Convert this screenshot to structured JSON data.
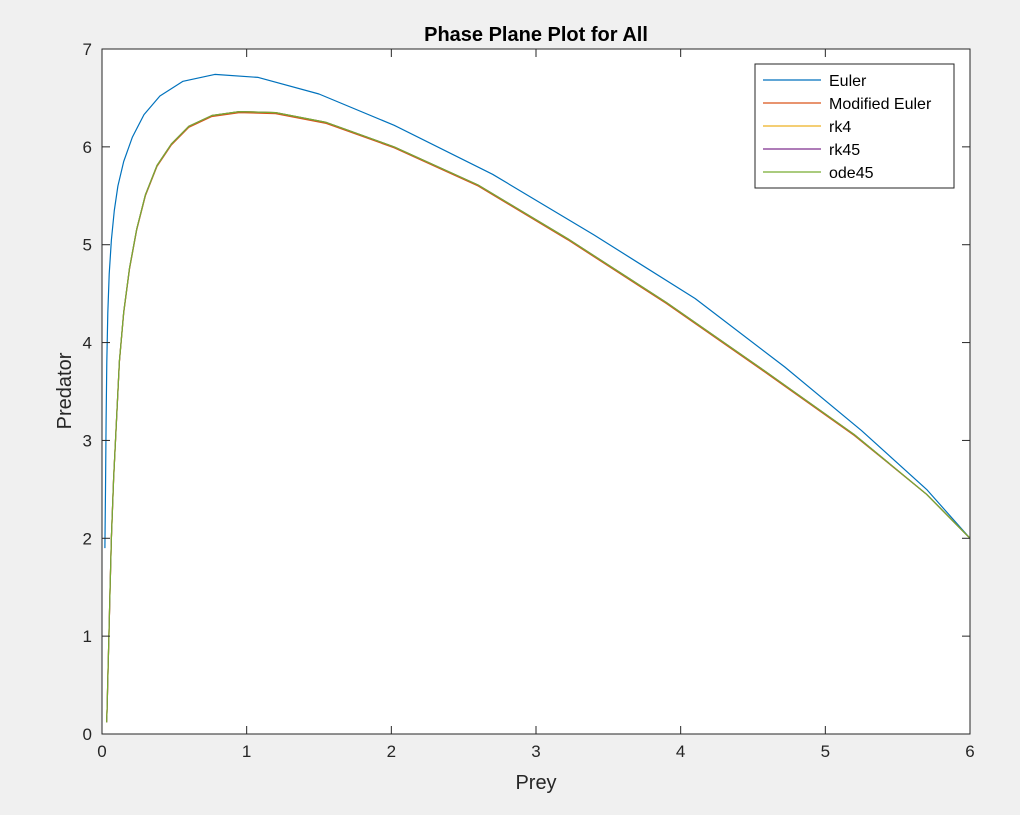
{
  "chart_data": {
    "type": "line",
    "title": "Phase Plane Plot for All",
    "xlabel": "Prey",
    "ylabel": "Predator",
    "xlim": [
      0,
      6
    ],
    "ylim": [
      0,
      7
    ],
    "xticks": [
      "0",
      "1",
      "2",
      "3",
      "4",
      "5",
      "6"
    ],
    "yticks": [
      "0",
      "1",
      "2",
      "3",
      "4",
      "5",
      "6",
      "7"
    ],
    "grid": false,
    "legend_position": "top-right",
    "series": [
      {
        "name": "Euler",
        "color": "#0072BD",
        "x": [
          6.0,
          5.7,
          5.25,
          4.72,
          4.1,
          3.4,
          2.7,
          2.02,
          1.5,
          1.08,
          0.78,
          0.56,
          0.4,
          0.29,
          0.21,
          0.15,
          0.11,
          0.085,
          0.065,
          0.05,
          0.04,
          0.033,
          0.028,
          0.024,
          0.02
        ],
        "y": [
          2.0,
          2.5,
          3.1,
          3.75,
          4.45,
          5.1,
          5.72,
          6.22,
          6.54,
          6.71,
          6.74,
          6.67,
          6.52,
          6.33,
          6.1,
          5.85,
          5.6,
          5.35,
          5.05,
          4.7,
          4.3,
          3.8,
          3.2,
          2.5,
          1.9
        ]
      },
      {
        "name": "Modified Euler",
        "color": "#D95319",
        "x": [
          6.0,
          5.7,
          5.2,
          4.58,
          3.9,
          3.22,
          2.6,
          2.02,
          1.55,
          1.2,
          0.95,
          0.76,
          0.6,
          0.48,
          0.38,
          0.3,
          0.24,
          0.19,
          0.15,
          0.12,
          0.1,
          0.08,
          0.065,
          0.055,
          0.047,
          0.04,
          0.035,
          0.032
        ],
        "y": [
          2.0,
          2.45,
          3.05,
          3.7,
          4.4,
          5.05,
          5.6,
          5.99,
          6.24,
          6.34,
          6.35,
          6.31,
          6.2,
          6.02,
          5.8,
          5.5,
          5.15,
          4.75,
          4.3,
          3.8,
          3.2,
          2.6,
          2.0,
          1.45,
          0.95,
          0.55,
          0.25,
          0.12
        ]
      },
      {
        "name": "rk4",
        "color": "#EDB120",
        "x": [
          6.0,
          5.7,
          5.2,
          4.58,
          3.9,
          3.22,
          2.6,
          2.02,
          1.55,
          1.2,
          0.95,
          0.76,
          0.6,
          0.48,
          0.38,
          0.3,
          0.24,
          0.19,
          0.15,
          0.12,
          0.1,
          0.08,
          0.065,
          0.055,
          0.047,
          0.04,
          0.035,
          0.032
        ],
        "y": [
          2.0,
          2.45,
          3.06,
          3.71,
          4.41,
          5.06,
          5.61,
          6.0,
          6.25,
          6.35,
          6.36,
          6.32,
          6.21,
          6.03,
          5.81,
          5.51,
          5.16,
          4.76,
          4.31,
          3.81,
          3.21,
          2.61,
          2.01,
          1.46,
          0.96,
          0.56,
          0.26,
          0.12
        ]
      },
      {
        "name": "rk45",
        "color": "#7E2F8E",
        "x": [
          6.0,
          5.7,
          5.2,
          4.58,
          3.9,
          3.22,
          2.6,
          2.02,
          1.55,
          1.2,
          0.95,
          0.76,
          0.6,
          0.48,
          0.38,
          0.3,
          0.24,
          0.19,
          0.15,
          0.12,
          0.1,
          0.08,
          0.065,
          0.055,
          0.047,
          0.04,
          0.035,
          0.032
        ],
        "y": [
          2.0,
          2.45,
          3.06,
          3.71,
          4.41,
          5.06,
          5.61,
          6.0,
          6.25,
          6.35,
          6.36,
          6.32,
          6.21,
          6.03,
          5.81,
          5.51,
          5.16,
          4.76,
          4.31,
          3.81,
          3.21,
          2.61,
          2.01,
          1.46,
          0.96,
          0.56,
          0.26,
          0.12
        ]
      },
      {
        "name": "ode45",
        "color": "#77AC30",
        "x": [
          6.0,
          5.7,
          5.2,
          4.58,
          3.9,
          3.22,
          2.6,
          2.02,
          1.55,
          1.2,
          0.95,
          0.76,
          0.6,
          0.48,
          0.38,
          0.3,
          0.24,
          0.19,
          0.15,
          0.12,
          0.1,
          0.08,
          0.065,
          0.055,
          0.047,
          0.04,
          0.035,
          0.032
        ],
        "y": [
          2.0,
          2.45,
          3.06,
          3.71,
          4.41,
          5.06,
          5.61,
          6.0,
          6.25,
          6.35,
          6.36,
          6.32,
          6.21,
          6.03,
          5.81,
          5.51,
          5.16,
          4.76,
          4.31,
          3.81,
          3.21,
          2.61,
          2.01,
          1.46,
          0.96,
          0.56,
          0.26,
          0.12
        ]
      }
    ]
  }
}
